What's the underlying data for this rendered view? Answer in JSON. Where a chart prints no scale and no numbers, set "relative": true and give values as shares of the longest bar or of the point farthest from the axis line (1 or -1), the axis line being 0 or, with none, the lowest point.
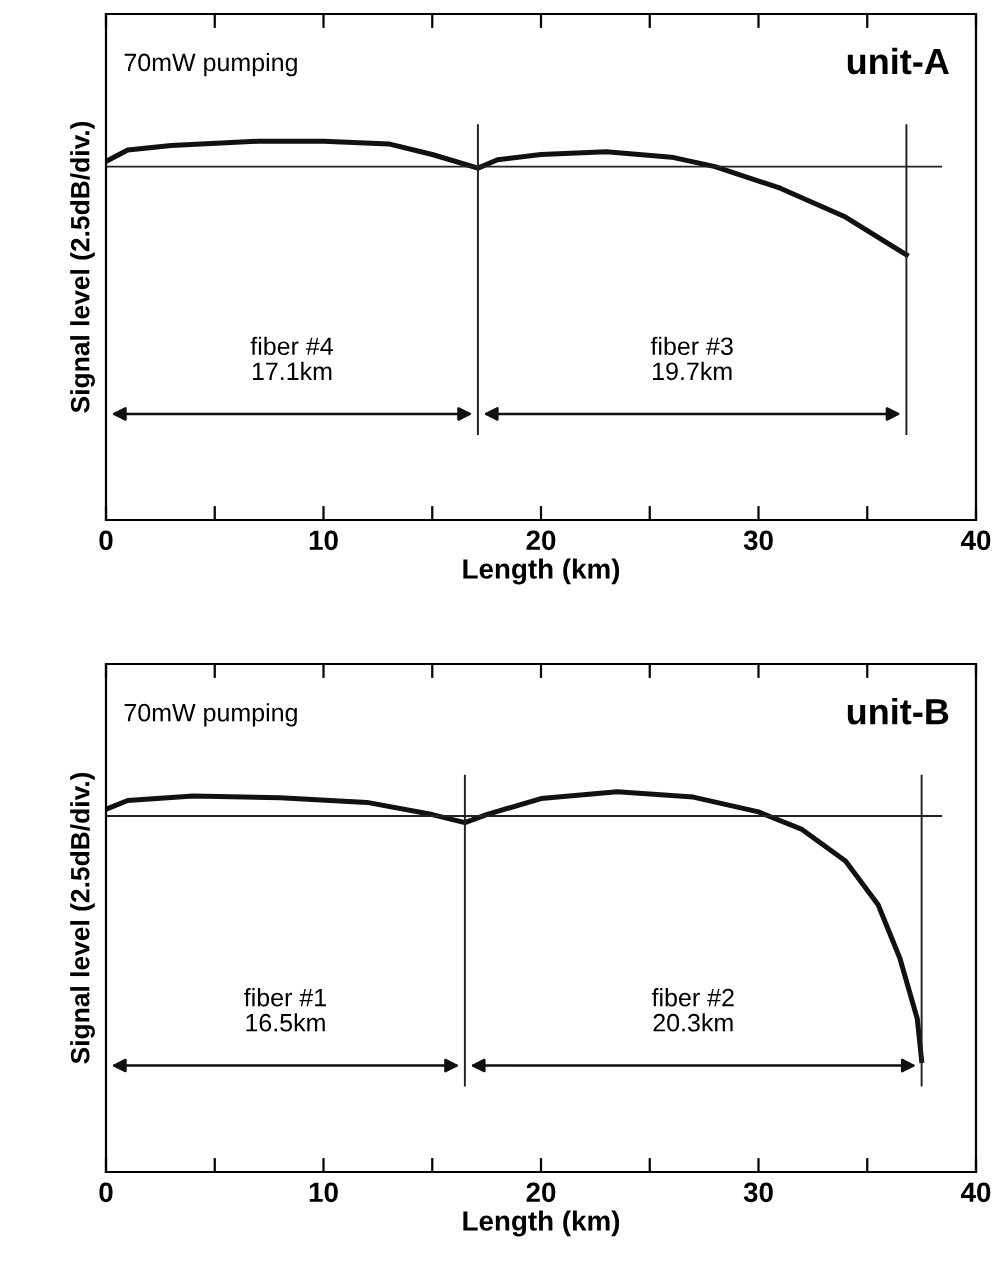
{
  "chart_data": [
    {
      "type": "line",
      "title": "unit-A",
      "xlabel": "Length (km)",
      "ylabel": "Signal level (2.5dB/div.)",
      "relative": true,
      "color": "#111111",
      "x": [
        0,
        1,
        3,
        7,
        10,
        13,
        15,
        17.1,
        18,
        20,
        23,
        26,
        28,
        31,
        34,
        36.8
      ],
      "values": [
        0.947,
        0.977,
        0.989,
        1.0,
        1.0,
        0.993,
        0.965,
        0.929,
        0.951,
        0.965,
        0.972,
        0.958,
        0.933,
        0.876,
        0.8,
        0.7
      ],
      "xlim": [
        0,
        40
      ],
      "xticks": [
        0,
        {
          "value": 5,
          "label": null
        },
        10,
        {
          "value": 15,
          "label": null
        },
        20,
        {
          "value": 25,
          "label": null
        },
        30,
        {
          "value": 35,
          "label": null
        },
        40
      ],
      "ref_lines": [
        {
          "axis": "y",
          "value": 0.933
        },
        {
          "axis": "x",
          "value": 17.1
        },
        {
          "axis": "x",
          "value": 36.8
        }
      ],
      "annotations": [
        "70mW pumping",
        "fiber #4\n17.1km",
        "fiber #3\n19.7km"
      ],
      "grid": false,
      "legend": false
    },
    {
      "type": "line",
      "title": "unit-B",
      "xlabel": "Length (km)",
      "ylabel": "Signal level (2.5dB/div.)",
      "relative": true,
      "color": "#111111",
      "x": [
        0,
        1,
        4,
        8,
        12,
        15,
        16.5,
        17.5,
        20,
        23.5,
        27,
        30,
        32,
        34,
        35.5,
        36.5,
        37.3,
        37.5
      ],
      "values": [
        0.954,
        0.977,
        0.989,
        0.984,
        0.972,
        0.94,
        0.919,
        0.94,
        0.982,
        1.0,
        0.986,
        0.947,
        0.901,
        0.818,
        0.703,
        0.562,
        0.403,
        0.293
      ],
      "xlim": [
        0,
        40
      ],
      "xticks": [
        0,
        {
          "value": 5,
          "label": null
        },
        10,
        {
          "value": 15,
          "label": null
        },
        20,
        {
          "value": 25,
          "label": null
        },
        30,
        {
          "value": 35,
          "label": null
        },
        40
      ],
      "ref_lines": [
        {
          "axis": "y",
          "value": 0.936
        },
        {
          "axis": "x",
          "value": 16.5
        },
        {
          "axis": "x",
          "value": 37.5
        }
      ],
      "annotations": [
        "70mW pumping",
        "fiber #1\n16.5km",
        "fiber #2\n20.3km"
      ],
      "grid": false,
      "legend": false
    }
  ]
}
